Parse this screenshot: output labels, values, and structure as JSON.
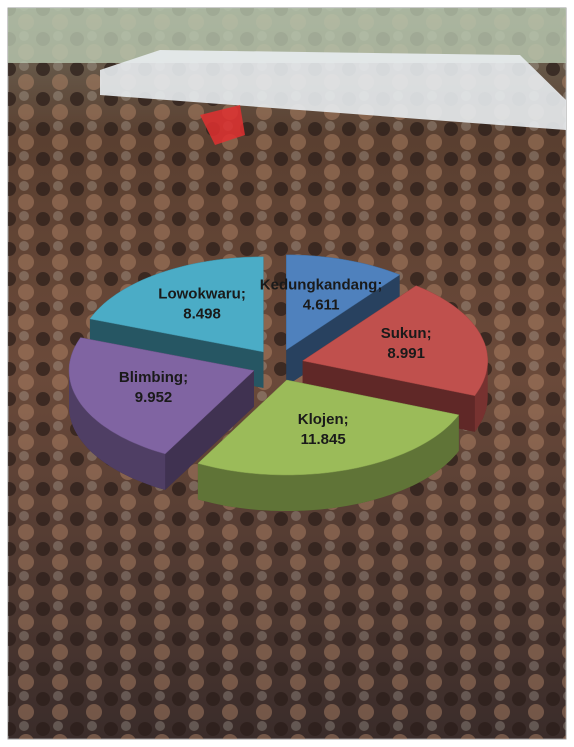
{
  "chart_data": {
    "type": "pie3d",
    "categories": [
      "Kedungkandang",
      "Sukun",
      "Klojen",
      "Blimbing",
      "Lowokwaru"
    ],
    "values": [
      4.611,
      8.991,
      11.845,
      9.952,
      8.498
    ],
    "label_separator": ";",
    "colors": [
      "#4f81bd",
      "#c0504d",
      "#9bbb59",
      "#8064a2",
      "#4bacc6"
    ],
    "exploded": true
  }
}
